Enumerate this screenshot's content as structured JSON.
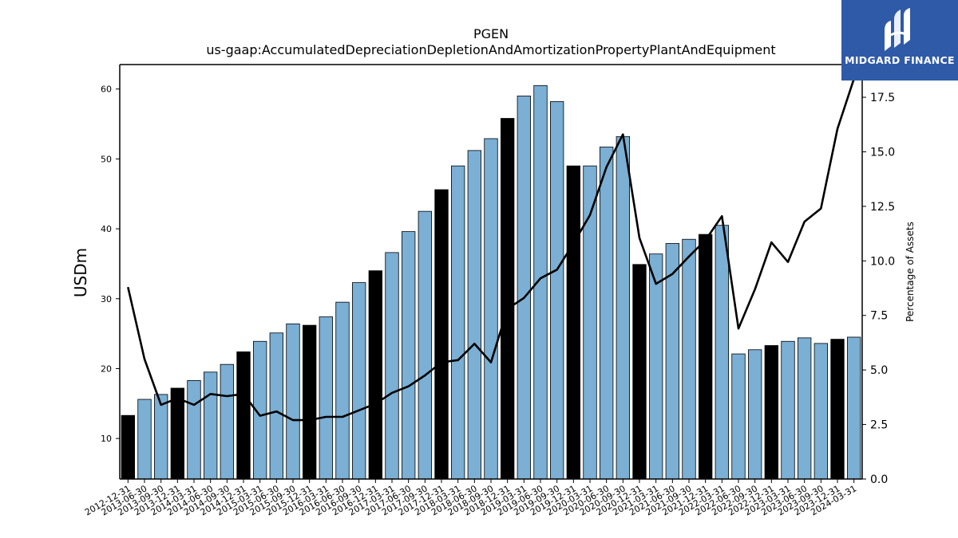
{
  "logo": {
    "text": "MIDGARD FINANCE",
    "bg": "#2f5aa8"
  },
  "chart_data": {
    "type": "bar",
    "title": "PGEN",
    "subtitle": "us-gaap:AccumulatedDepreciationDepletionAndAmortizationPropertyPlantAndEquipment",
    "ylabel": "USDm",
    "y2label": "Percentage of Assets",
    "ylim": [
      4.2,
      63.5
    ],
    "y2lim": [
      0,
      19.0
    ],
    "yticks": [
      10,
      20,
      30,
      40,
      50,
      60
    ],
    "y2ticks": [
      "0.0",
      "2.5",
      "5.0",
      "7.5",
      "10.0",
      "12.5",
      "15.0",
      "17.5"
    ],
    "grid": false,
    "colors": {
      "bar": "#7bafd4",
      "bar_year_end": "#000000",
      "line": "#000000"
    },
    "categories": [
      "2012-12-31",
      "2013-06-30",
      "2013-09-30",
      "2013-12-31",
      "2014-03-31",
      "2014-06-30",
      "2014-09-30",
      "2014-12-31",
      "2015-03-31",
      "2015-06-30",
      "2015-09-30",
      "2015-12-31",
      "2016-03-31",
      "2016-06-30",
      "2016-09-30",
      "2016-12-31",
      "2017-03-31",
      "2017-06-30",
      "2017-09-30",
      "2017-12-31",
      "2018-03-31",
      "2018-06-30",
      "2018-09-30",
      "2018-12-31",
      "2019-03-31",
      "2019-06-30",
      "2019-09-30",
      "2019-12-31",
      "2020-03-31",
      "2020-06-30",
      "2020-09-30",
      "2020-12-31",
      "2021-03-31",
      "2021-06-30",
      "2021-09-30",
      "2021-12-31",
      "2022-03-31",
      "2022-06-30",
      "2022-09-30",
      "2022-12-31",
      "2023-03-31",
      "2023-06-30",
      "2023-09-30",
      "2023-12-31",
      "2024-03-31"
    ],
    "series": [
      {
        "values": [
          13.3,
          15.6,
          16.3,
          17.2,
          18.3,
          19.5,
          20.6,
          22.4,
          23.9,
          25.1,
          26.4,
          26.2,
          27.4,
          29.5,
          32.3,
          34.0,
          36.6,
          39.6,
          42.5,
          45.6,
          49.0,
          51.2,
          52.9,
          55.8,
          59.0,
          60.5,
          58.2,
          49.0,
          49.0,
          51.7,
          53.2,
          34.9,
          36.4,
          37.9,
          38.5,
          39.2,
          40.5,
          22.1,
          22.7,
          23.3,
          23.9,
          24.4,
          23.6,
          24.2,
          24.5
        ]
      },
      {
        "values": [
          8.8,
          5.5,
          3.4,
          3.7,
          3.4,
          3.9,
          3.8,
          3.9,
          2.9,
          3.1,
          2.7,
          2.7,
          2.85,
          2.85,
          3.15,
          3.45,
          3.95,
          4.25,
          4.75,
          5.35,
          5.45,
          6.2,
          5.35,
          7.8,
          8.3,
          9.2,
          9.6,
          10.8,
          12.1,
          14.3,
          15.8,
          11.05,
          8.95,
          9.4,
          10.2,
          10.95,
          12.05,
          6.9,
          8.7,
          10.85,
          9.95,
          11.8,
          12.4,
          16.05,
          18.35
        ]
      }
    ]
  }
}
